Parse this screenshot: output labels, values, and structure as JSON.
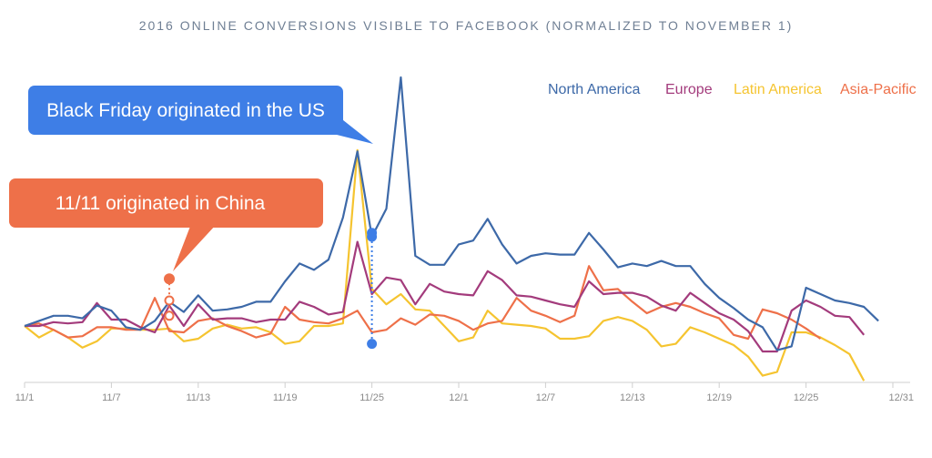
{
  "chart_data": {
    "type": "line",
    "title": "2016 ONLINE CONVERSIONS VISIBLE TO FACEBOOK (NORMALIZED TO NOVEMBER 1)",
    "x_ticks": [
      "11/1",
      "11/7",
      "11/13",
      "11/19",
      "11/25",
      "12/1",
      "12/7",
      "12/13",
      "12/19",
      "12/25",
      "12/31"
    ],
    "legend_position": "top-right",
    "grid": false,
    "series": [
      {
        "name": "North America",
        "color": "#3d69a8",
        "values": [
          1.0,
          1.04,
          1.08,
          1.08,
          1.06,
          1.16,
          1.12,
          0.99,
          0.97,
          1.04,
          1.19,
          1.11,
          1.24,
          1.12,
          1.13,
          1.15,
          1.19,
          1.19,
          1.35,
          1.49,
          1.44,
          1.52,
          1.85,
          2.37,
          1.7,
          1.92,
          2.95,
          1.55,
          1.48,
          1.48,
          1.64,
          1.67,
          1.84,
          1.64,
          1.49,
          1.55,
          1.57,
          1.56,
          1.56,
          1.73,
          1.6,
          1.46,
          1.49,
          1.47,
          1.51,
          1.47,
          1.47,
          1.33,
          1.22,
          1.14,
          1.05,
          0.99,
          0.81,
          0.84,
          1.3,
          1.25,
          1.2,
          1.18,
          1.15,
          1.04
        ]
      },
      {
        "name": "Europe",
        "color": "#a33b7c",
        "values": [
          1.0,
          1.0,
          1.03,
          1.02,
          1.03,
          1.18,
          1.05,
          1.05,
          0.99,
          0.95,
          1.16,
          1.0,
          1.17,
          1.05,
          1.06,
          1.06,
          1.03,
          1.05,
          1.05,
          1.19,
          1.15,
          1.09,
          1.11,
          1.66,
          1.25,
          1.38,
          1.36,
          1.17,
          1.33,
          1.27,
          1.25,
          1.24,
          1.43,
          1.36,
          1.24,
          1.23,
          1.2,
          1.17,
          1.15,
          1.35,
          1.25,
          1.26,
          1.26,
          1.23,
          1.16,
          1.12,
          1.26,
          1.18,
          1.1,
          1.05,
          0.96,
          0.8,
          0.8,
          1.12,
          1.2,
          1.15,
          1.08,
          1.07,
          0.93
        ]
      },
      {
        "name": "Latin America",
        "color": "#f5c430",
        "values": [
          1.0,
          0.91,
          0.97,
          0.91,
          0.83,
          0.88,
          0.98,
          0.98,
          0.97,
          0.97,
          0.98,
          0.88,
          0.9,
          0.98,
          1.01,
          0.98,
          0.99,
          0.95,
          0.86,
          0.88,
          1.0,
          1.0,
          1.02,
          2.38,
          1.29,
          1.17,
          1.25,
          1.13,
          1.12,
          1.0,
          0.88,
          0.91,
          1.12,
          1.02,
          1.01,
          1.0,
          0.98,
          0.9,
          0.9,
          0.92,
          1.04,
          1.07,
          1.04,
          0.97,
          0.84,
          0.86,
          0.99,
          0.95,
          0.9,
          0.85,
          0.76,
          0.61,
          0.64,
          0.95,
          0.95,
          0.91,
          0.85,
          0.78,
          0.57
        ]
      },
      {
        "name": "Asia-Pacific",
        "color": "#ee7049",
        "values": [
          1.0,
          1.02,
          0.97,
          0.91,
          0.92,
          0.99,
          0.99,
          0.97,
          0.97,
          1.22,
          0.96,
          0.95,
          1.04,
          1.06,
          1.0,
          0.96,
          0.91,
          0.94,
          1.15,
          1.05,
          1.03,
          1.02,
          1.06,
          1.12,
          0.95,
          0.97,
          1.06,
          1.01,
          1.09,
          1.08,
          1.04,
          0.97,
          1.02,
          1.04,
          1.22,
          1.12,
          1.08,
          1.03,
          1.08,
          1.47,
          1.28,
          1.29,
          1.19,
          1.1,
          1.15,
          1.18,
          1.15,
          1.1,
          1.06,
          0.93,
          0.9,
          1.13,
          1.1,
          1.05,
          0.98,
          0.9
        ]
      }
    ],
    "annotations": [
      {
        "text": "Black Friday originated in the US",
        "color": "#3e7ee6",
        "x_index": 24
      },
      {
        "text": "11/11 originated in China",
        "color": "#ee7049",
        "x_index": 10
      }
    ]
  }
}
